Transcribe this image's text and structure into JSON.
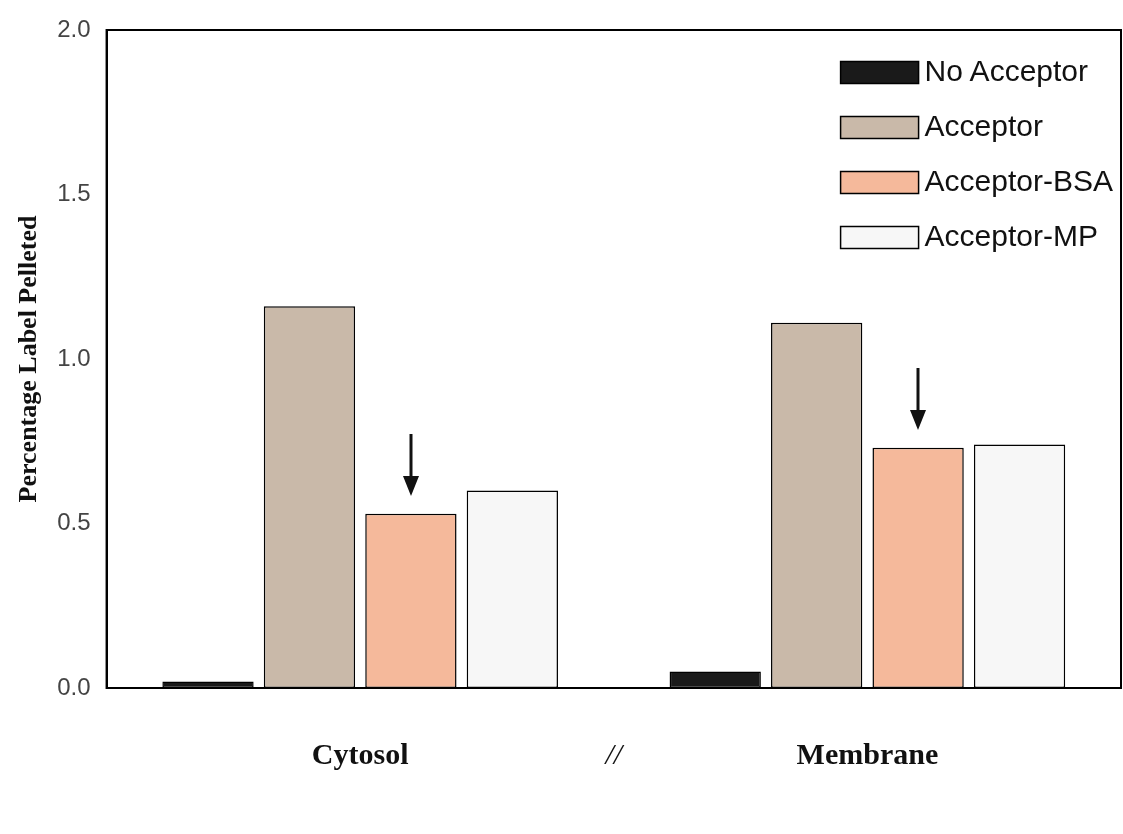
{
  "chart_data": {
    "type": "bar",
    "ylabel": "Percentage Label Pelleted",
    "categories": [
      "Cytosol",
      "Membrane"
    ],
    "series": [
      {
        "name": "No Acceptor",
        "color": "#1a1a1a",
        "values": [
          0.02,
          0.05
        ]
      },
      {
        "name": "Acceptor",
        "color": "#c9b9a9",
        "values": [
          1.16,
          1.11
        ]
      },
      {
        "name": "Acceptor-BSA",
        "color": "#f5b99b",
        "values": [
          0.53,
          0.73
        ]
      },
      {
        "name": "Acceptor-MP",
        "color": "#f7f7f7",
        "values": [
          0.6,
          0.74
        ]
      }
    ],
    "ylim": [
      0,
      2
    ],
    "yticks": [
      {
        "value": 0,
        "label": "0.0"
      },
      0.5,
      {
        "value": 1,
        "label": "1.0"
      },
      1.5,
      {
        "value": 2,
        "label": "2.0"
      }
    ],
    "grid": false,
    "legend": "top right",
    "annotations": [
      "//"
    ]
  }
}
